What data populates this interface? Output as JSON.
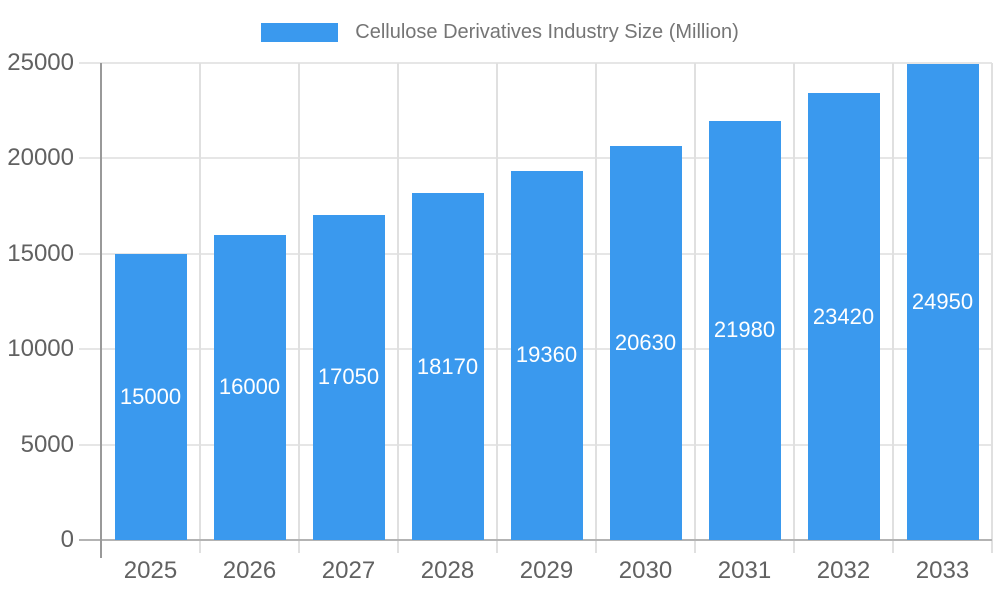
{
  "legend": {
    "label": "Cellulose Derivatives Industry Size (Million)"
  },
  "chart_data": {
    "type": "bar",
    "title": "Cellulose Derivatives Industry Size (Million)",
    "categories": [
      "2025",
      "2026",
      "2027",
      "2028",
      "2029",
      "2030",
      "2031",
      "2032",
      "2033"
    ],
    "series": [
      {
        "name": "Cellulose Derivatives Industry Size (Million)",
        "values": [
          15000,
          16000,
          17050,
          18170,
          19360,
          20630,
          21980,
          23420,
          24950
        ]
      }
    ],
    "values": [
      15000,
      16000,
      17050,
      18170,
      19360,
      20630,
      21980,
      23420,
      24950
    ],
    "bar_labels": [
      "15000",
      "16000",
      "17050",
      "18170",
      "19360",
      "20630",
      "21980",
      "23420",
      "24950"
    ],
    "xlabel": "",
    "ylabel": "",
    "ylim": [
      0,
      25000
    ],
    "yticks": [
      0,
      5000,
      10000,
      15000,
      20000,
      25000
    ],
    "ytick_labels": [
      "0",
      "5000",
      "10000",
      "15000",
      "20000",
      "25000"
    ],
    "grid": true,
    "legend_position": "top",
    "colors": {
      "bar": "#3a99ee",
      "legend_text": "#757575",
      "axis_text": "#616161",
      "bar_label_text": "#ffffff",
      "h_gridline": "#e6e6e6",
      "v_gridline": "#e0e0e0",
      "y_axis_line": "#999999",
      "x_axis_line": "#b3b3b3"
    }
  }
}
